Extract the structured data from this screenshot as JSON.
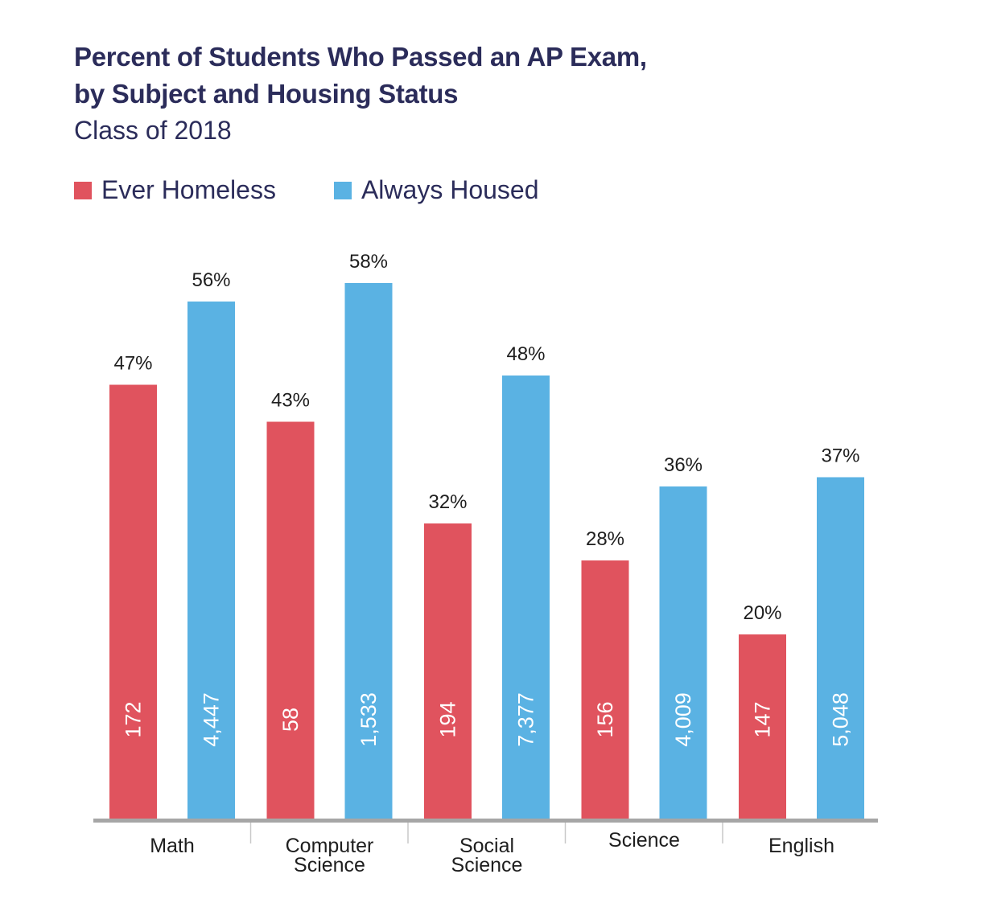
{
  "chart_data": {
    "type": "bar",
    "title_line1": "Percent of Students Who Passed an AP Exam,",
    "title_line2": "by Subject and Housing Status",
    "subtitle": "Class of 2018",
    "categories": [
      [
        "Math"
      ],
      [
        "Computer",
        "Science"
      ],
      [
        "Social",
        "Science"
      ],
      [
        "Science"
      ],
      [
        "English"
      ]
    ],
    "series": [
      {
        "name": "Ever Homeless",
        "color": "#e0535e",
        "values": [
          47,
          43,
          32,
          28,
          20
        ],
        "value_labels": [
          "47%",
          "43%",
          "32%",
          "28%",
          "20%"
        ],
        "counts": [
          "172",
          "58",
          "194",
          "156",
          "147"
        ]
      },
      {
        "name": "Always Housed",
        "color": "#5ab2e3",
        "values": [
          56,
          58,
          48,
          36,
          37
        ],
        "value_labels": [
          "56%",
          "58%",
          "48%",
          "36%",
          "37%"
        ],
        "counts": [
          "4,447",
          "1,533",
          "7,377",
          "4,009",
          "5,048"
        ]
      }
    ],
    "legend_position": "top-left",
    "axis_color": "#a6a6a6",
    "grid": false
  }
}
